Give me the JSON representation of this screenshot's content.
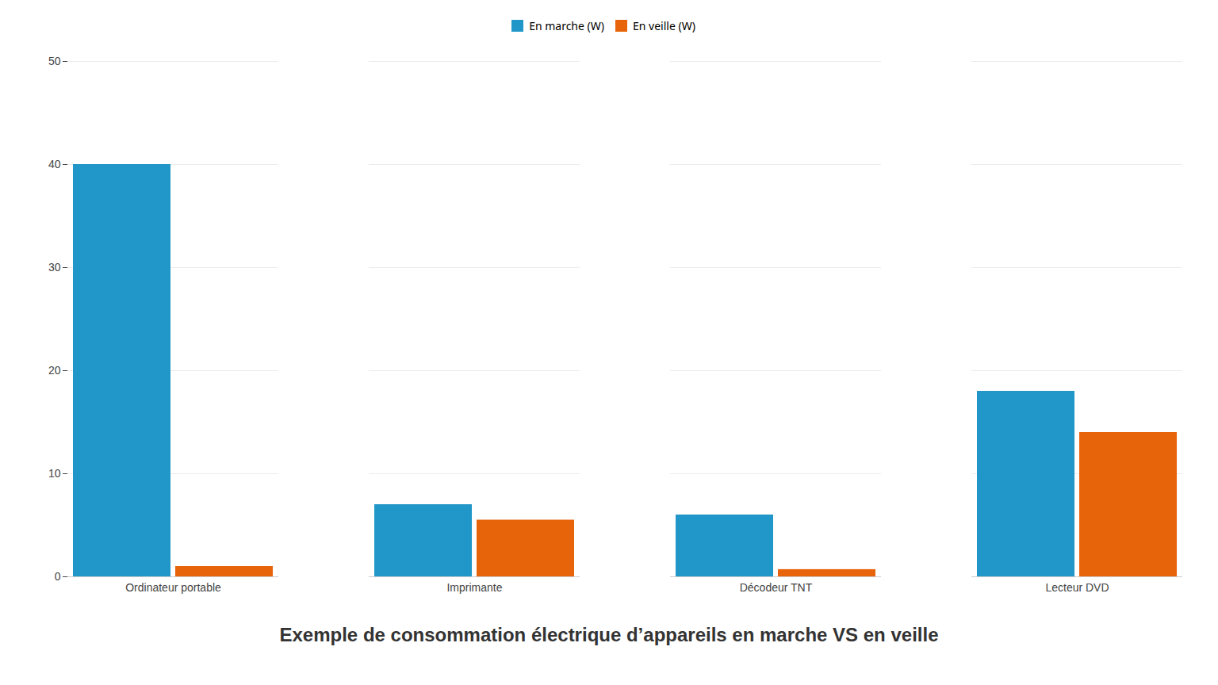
{
  "chart_data": {
    "type": "bar",
    "title": "Exemple de consommation électrique d’appareils en marche VS en veille",
    "categories": [
      "Ordinateur portable",
      "Imprimante",
      "Décodeur TNT",
      "Lecteur DVD"
    ],
    "series": [
      {
        "name": "En marche (W)",
        "color": "#2196C8",
        "values": [
          40,
          7,
          6,
          18
        ]
      },
      {
        "name": "En veille (W)",
        "color": "#E8640A",
        "values": [
          1,
          5.5,
          0.7,
          14
        ]
      }
    ],
    "ylim": [
      0,
      50
    ],
    "yticks": [
      0,
      10,
      20,
      30,
      40,
      50
    ],
    "grid": true,
    "legend": "top"
  }
}
